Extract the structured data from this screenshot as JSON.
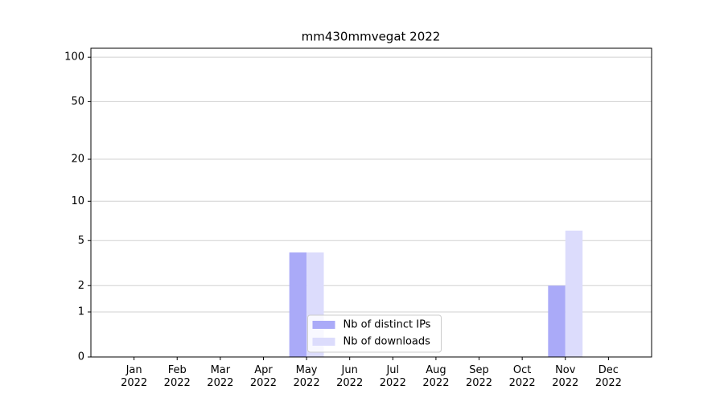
{
  "chart_data": {
    "type": "bar",
    "title": "mm430mmvegat 2022",
    "categories": [
      "Jan\n2022",
      "Feb\n2022",
      "Mar\n2022",
      "Apr\n2022",
      "May\n2022",
      "Jun\n2022",
      "Jul\n2022",
      "Aug\n2022",
      "Sep\n2022",
      "Oct\n2022",
      "Nov\n2022",
      "Dec\n2022"
    ],
    "series": [
      {
        "name": "Nb of distinct IPs",
        "color": "#aaaaf8",
        "values": [
          0,
          0,
          0,
          0,
          4,
          0,
          0,
          0,
          0,
          0,
          2,
          0
        ]
      },
      {
        "name": "Nb of downloads",
        "color": "#dcdcfc",
        "values": [
          0,
          0,
          0,
          0,
          4,
          0,
          0,
          0,
          0,
          0,
          6,
          0
        ]
      }
    ],
    "yscale": "log1p",
    "ylim": [
      0,
      115
    ],
    "yticks": [
      0,
      1,
      2,
      5,
      10,
      20,
      50,
      100
    ],
    "grid": true,
    "legend": "lower center"
  }
}
